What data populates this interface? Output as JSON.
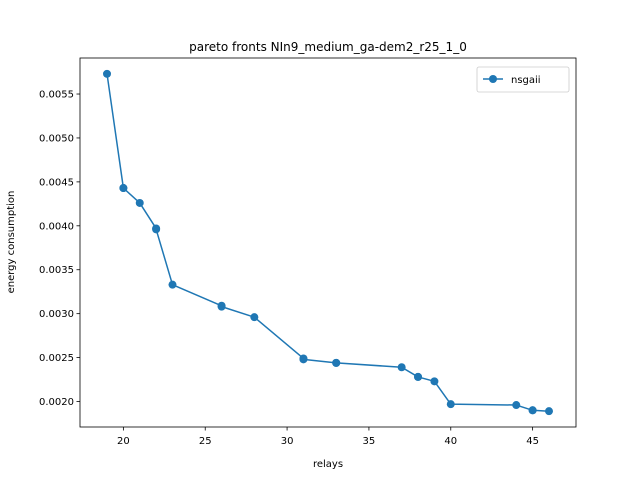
{
  "chart_data": {
    "type": "line",
    "title": "pareto fronts NIn9_medium_ga-dem2_r25_1_0",
    "xlabel": "relays",
    "ylabel": "energy consumption",
    "xlim": [
      17.35,
      47.65
    ],
    "ylim": [
      0.00171,
      0.00591
    ],
    "xticks": [
      20,
      25,
      30,
      35,
      40,
      45
    ],
    "xtick_labels": [
      "20",
      "25",
      "30",
      "35",
      "40",
      "45"
    ],
    "yticks": [
      0.002,
      0.0025,
      0.003,
      0.0035,
      0.004,
      0.0045,
      0.005,
      0.0055
    ],
    "ytick_labels": [
      "0.0020",
      "0.0025",
      "0.0030",
      "0.0035",
      "0.0040",
      "0.0045",
      "0.0050",
      "0.0055"
    ],
    "grid": false,
    "legend_position": "top-right",
    "series": [
      {
        "name": "nsgaii",
        "color": "#1f77b4",
        "marker": "circle",
        "x": [
          19,
          20,
          20,
          21,
          22,
          22,
          23,
          26,
          26,
          28,
          31,
          31,
          33,
          33,
          37,
          38,
          38,
          39,
          40,
          44,
          45,
          45,
          46
        ],
        "y": [
          0.00573,
          0.00443,
          0.00443,
          0.00426,
          0.00397,
          0.00396,
          0.00333,
          0.00309,
          0.00308,
          0.00296,
          0.00249,
          0.00248,
          0.00244,
          0.00244,
          0.00239,
          0.00228,
          0.00228,
          0.00223,
          0.00197,
          0.00196,
          0.0019,
          0.0019,
          0.00189
        ]
      }
    ]
  }
}
